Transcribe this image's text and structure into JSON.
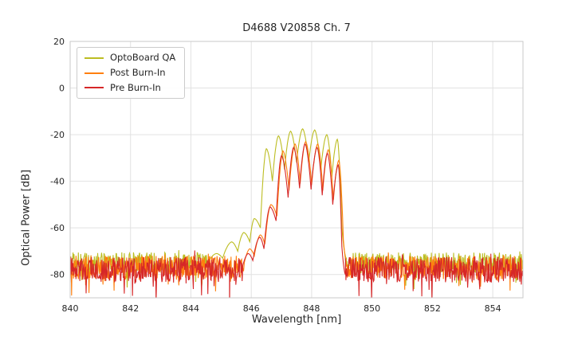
{
  "chart_data": {
    "type": "line",
    "title": "D4688 V20858 Ch. 7",
    "xlabel": "Wavelength [nm]",
    "ylabel": "Optical Power [dB]",
    "xlim": [
      840,
      855
    ],
    "ylim": [
      -90,
      20
    ],
    "xticks": [
      840,
      842,
      844,
      846,
      848,
      850,
      852,
      854
    ],
    "yticks": [
      20,
      0,
      -20,
      -40,
      -60,
      -80
    ],
    "grid": true,
    "legend_position": "upper left",
    "series": [
      {
        "name": "OptoBoard QA",
        "color": "#bcbd22",
        "noise": {
          "mean": -75,
          "amp": 4.5,
          "spike_prob": 0.06,
          "spike": 9,
          "seed": 11
        },
        "profile": [
          [
            844.55,
            -75
          ],
          [
            844.85,
            -71
          ],
          [
            845.05,
            -73
          ],
          [
            845.35,
            -66
          ],
          [
            845.55,
            -70
          ],
          [
            845.75,
            -62
          ],
          [
            845.95,
            -66
          ],
          [
            846.1,
            -56
          ],
          [
            846.3,
            -60
          ],
          [
            846.5,
            -26
          ],
          [
            846.7,
            -40
          ],
          [
            846.9,
            -20.5
          ],
          [
            847.1,
            -35
          ],
          [
            847.3,
            -18.5
          ],
          [
            847.5,
            -32
          ],
          [
            847.7,
            -17.5
          ],
          [
            847.9,
            -32
          ],
          [
            848.1,
            -18
          ],
          [
            848.3,
            -35
          ],
          [
            848.5,
            -20
          ],
          [
            848.67,
            -38
          ],
          [
            848.85,
            -22
          ],
          [
            849.0,
            -60
          ],
          [
            849.15,
            -73
          ]
        ]
      },
      {
        "name": "Post Burn-In",
        "color": "#ff7f0e",
        "noise": {
          "mean": -77,
          "amp": 5.0,
          "spike_prob": 0.07,
          "spike": 9,
          "seed": 23
        },
        "profile": [
          [
            845.75,
            -76
          ],
          [
            845.95,
            -69
          ],
          [
            846.1,
            -72
          ],
          [
            846.3,
            -63
          ],
          [
            846.45,
            -67
          ],
          [
            846.65,
            -50
          ],
          [
            846.85,
            -55
          ],
          [
            847.05,
            -27
          ],
          [
            847.25,
            -44
          ],
          [
            847.45,
            -24
          ],
          [
            847.62,
            -41
          ],
          [
            847.8,
            -23
          ],
          [
            848.0,
            -41.5
          ],
          [
            848.2,
            -24
          ],
          [
            848.37,
            -44
          ],
          [
            848.55,
            -26.5
          ],
          [
            848.72,
            -48
          ],
          [
            848.9,
            -31
          ],
          [
            849.05,
            -65
          ],
          [
            849.18,
            -77
          ]
        ]
      },
      {
        "name": "Pre Burn-In",
        "color": "#d62728",
        "noise": {
          "mean": -78,
          "amp": 5.5,
          "spike_prob": 0.08,
          "spike": 10,
          "seed": 37
        },
        "drop_spikes": [
          {
            "x": 845.28,
            "y": -95
          }
        ],
        "profile": [
          [
            845.7,
            -77
          ],
          [
            845.9,
            -71
          ],
          [
            846.05,
            -74
          ],
          [
            846.28,
            -64
          ],
          [
            846.42,
            -69
          ],
          [
            846.62,
            -51
          ],
          [
            846.82,
            -57
          ],
          [
            847.0,
            -29
          ],
          [
            847.22,
            -47
          ],
          [
            847.4,
            -25.5
          ],
          [
            847.6,
            -43
          ],
          [
            847.78,
            -24
          ],
          [
            847.98,
            -43.5
          ],
          [
            848.18,
            -25.5
          ],
          [
            848.35,
            -46
          ],
          [
            848.52,
            -28
          ],
          [
            848.7,
            -50
          ],
          [
            848.88,
            -33
          ],
          [
            849.0,
            -68
          ],
          [
            849.12,
            -80
          ]
        ]
      }
    ]
  }
}
